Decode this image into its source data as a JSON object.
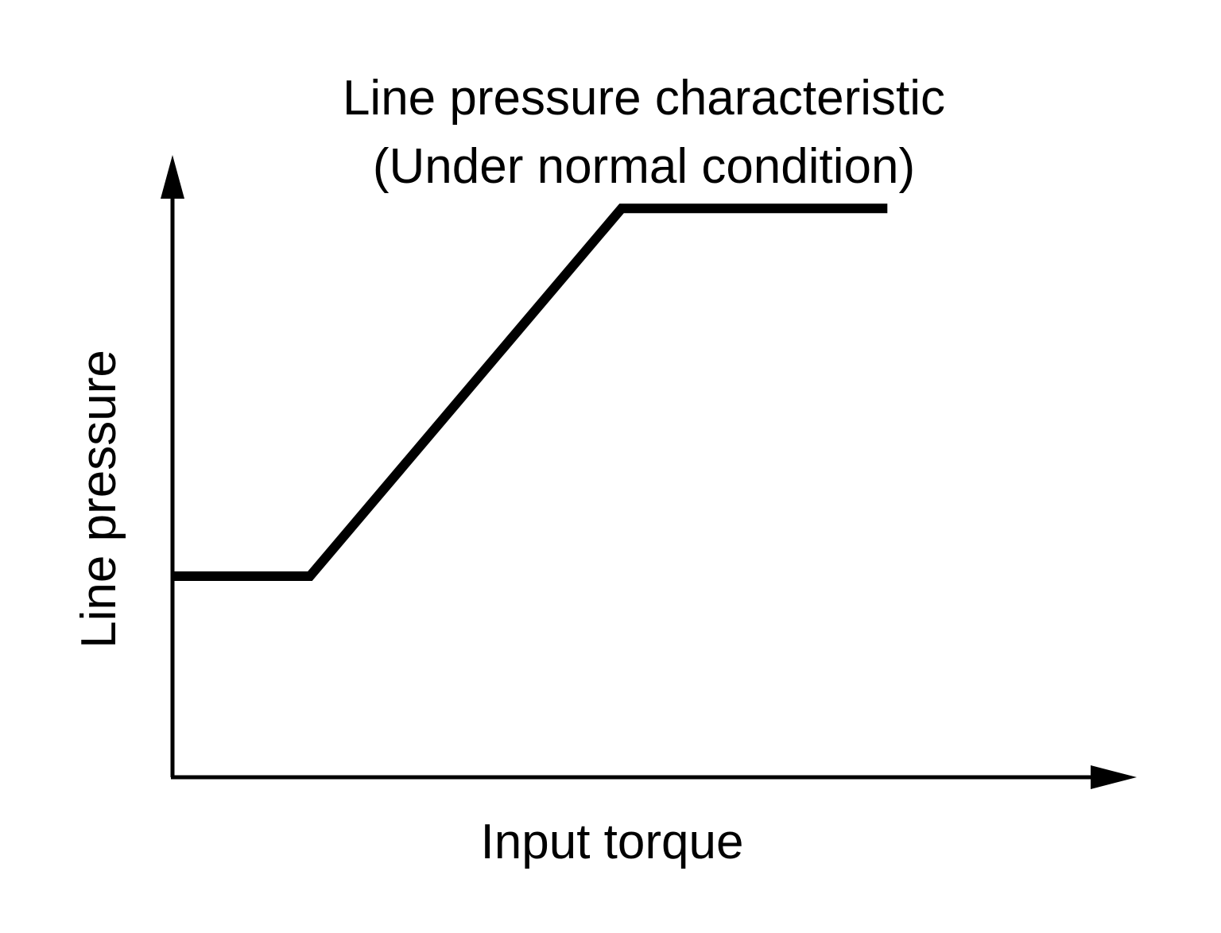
{
  "chart_data": {
    "type": "line",
    "title": "Line pressure characteristic",
    "subtitle": "(Under normal condition)",
    "xlabel": "Input torque",
    "ylabel": "Line pressure",
    "xlim": [
      0,
      10
    ],
    "ylim": [
      0,
      10
    ],
    "grid": false,
    "series": [
      {
        "x": [
          0,
          1.5,
          4.9,
          7.8
        ],
        "y": [
          3.5,
          3.5,
          9.9,
          9.9
        ]
      }
    ],
    "line_color": "#000000"
  }
}
